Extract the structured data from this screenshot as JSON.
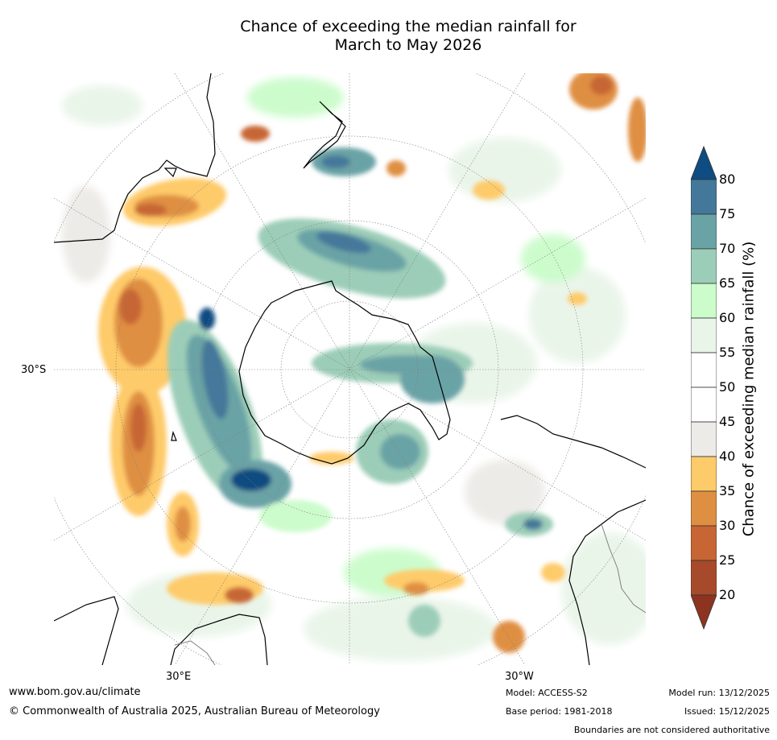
{
  "title_line1": "Chance of exceeding the median rainfall for",
  "title_line2": "March to May 2026",
  "lat_label": "30°S",
  "lon_label_left": "30°E",
  "lon_label_right": "30°W",
  "colorbar": {
    "label": "Chance of exceeding median rainfall (%)",
    "ticks": [
      "80",
      "75",
      "70",
      "65",
      "60",
      "55",
      "50",
      "45",
      "40",
      "35",
      "30",
      "25",
      "20"
    ],
    "colors": {
      "above_80": "#0f4c81",
      "75_80": "#44789a",
      "70_75": "#6aa3a6",
      "65_70": "#9ccdb8",
      "60_65": "#ccfccc",
      "55_60": "#eaf5ea",
      "50_55": "#ffffff",
      "45_50": "#ffffff",
      "40_45": "#edebe7",
      "35_40": "#fecb6a",
      "30_35": "#df8f42",
      "25_30": "#c76634",
      "20_25": "#a74a2b",
      "below_20": "#8c3420"
    }
  },
  "footer": {
    "website": "www.bom.gov.au/climate",
    "copyright": "© Commonwealth of Australia 2025, Australian Bureau of Meteorology",
    "model": "Model: ACCESS-S2",
    "base_period": "Base period: 1981-2018",
    "model_run": "Model run: 13/12/2025",
    "issued": "Issued: 15/12/2025",
    "disclaimer": "Boundaries are not considered authoritative"
  }
}
